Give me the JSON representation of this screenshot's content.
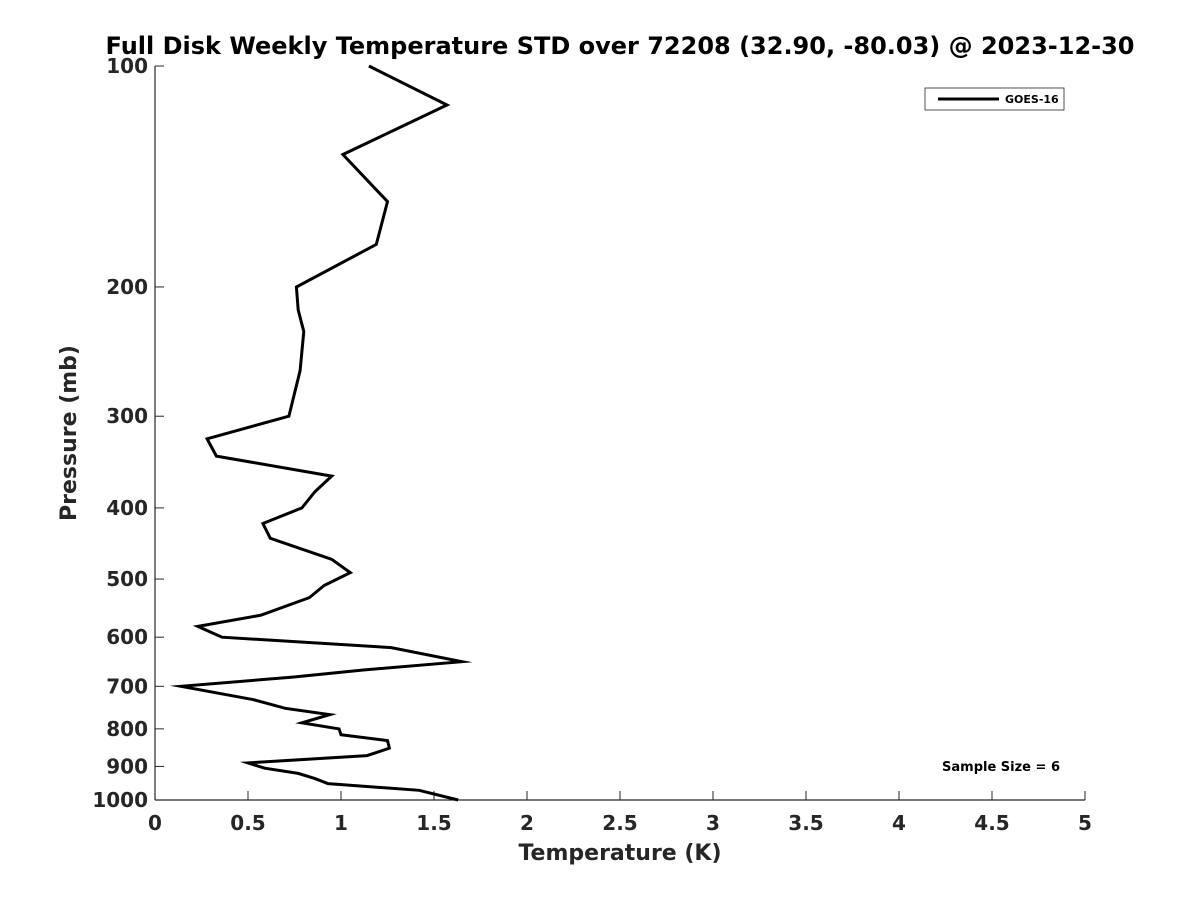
{
  "chart_data": {
    "type": "line",
    "title": "Full Disk Weekly Temperature STD over 72208 (32.90, -80.03) @ 2023-12-30",
    "xlabel": "Temperature (K)",
    "ylabel": "Pressure (mb)",
    "xlim": [
      0,
      5
    ],
    "ylim": [
      100,
      1000
    ],
    "y_scale": "log",
    "y_reversed": true,
    "x_ticks": [
      0,
      0.5,
      1,
      1.5,
      2,
      2.5,
      3,
      3.5,
      4,
      4.5,
      5
    ],
    "x_tick_labels": [
      "0",
      "0.5",
      "1",
      "1.5",
      "2",
      "2.5",
      "3",
      "3.5",
      "4",
      "4.5",
      "5"
    ],
    "y_ticks": [
      100,
      200,
      300,
      400,
      500,
      600,
      700,
      800,
      900,
      1000
    ],
    "y_tick_labels": [
      "100",
      "200",
      "300",
      "400",
      "500",
      "600",
      "700",
      "800",
      "900",
      "1000"
    ],
    "grid": false,
    "legend_position": "top-right",
    "series": [
      {
        "name": "GOES-16",
        "color": "#000000",
        "x": [
          1.15,
          1.57,
          1.01,
          1.25,
          1.19,
          0.76,
          0.77,
          0.8,
          0.79,
          0.78,
          0.72,
          0.28,
          0.33,
          0.95,
          0.86,
          0.79,
          0.58,
          0.62,
          0.95,
          1.05,
          0.91,
          0.83,
          0.57,
          0.23,
          0.36,
          1.27,
          1.65,
          1.12,
          0.74,
          0.14,
          0.53,
          0.7,
          0.94,
          0.79,
          0.99,
          1.0,
          1.25,
          1.26,
          1.14,
          0.5,
          0.59,
          0.77,
          0.86,
          0.93,
          1.42,
          1.63
        ],
        "y": [
          100,
          113,
          132,
          153,
          175,
          200,
          215,
          230,
          245,
          260,
          300,
          322,
          340,
          362,
          380,
          400,
          420,
          440,
          470,
          490,
          510,
          530,
          560,
          580,
          600,
          620,
          648,
          665,
          680,
          700,
          730,
          750,
          765,
          785,
          800,
          815,
          830,
          850,
          870,
          890,
          905,
          920,
          935,
          950,
          970,
          1000
        ]
      }
    ],
    "annotations": [
      {
        "text": "Sample Size = 6",
        "position": "bottom-right"
      }
    ]
  }
}
